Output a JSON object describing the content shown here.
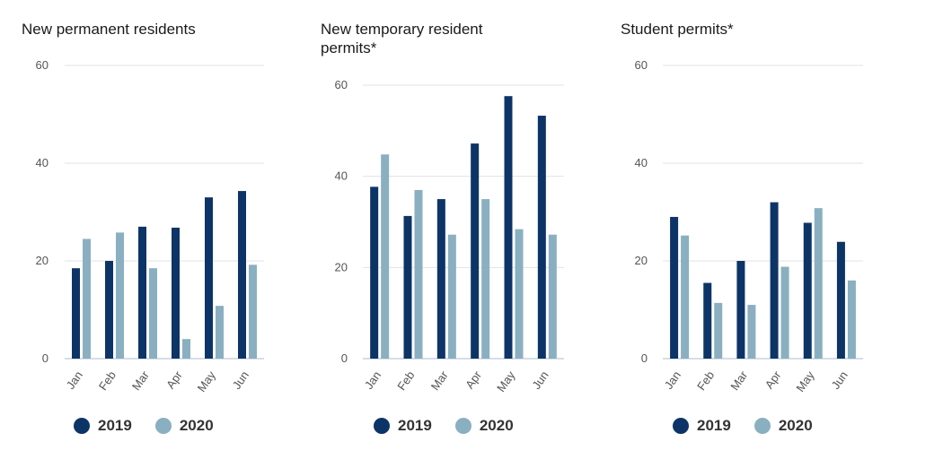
{
  "colors": {
    "s2019": "#0d3466",
    "s2020": "#8aafc1",
    "grid": "#e3e3e3",
    "axis": "#c8d3df"
  },
  "chart_data": [
    {
      "type": "bar",
      "title": "New permanent residents",
      "categories": [
        "Jan",
        "Feb",
        "Mar",
        "Apr",
        "May",
        "Jun"
      ],
      "ylim": [
        0,
        60
      ],
      "yticks": [
        "0",
        "20",
        "40",
        "60"
      ],
      "series": [
        {
          "name": "2019",
          "values": [
            18.5,
            20,
            27,
            26.8,
            33,
            34.3
          ]
        },
        {
          "name": "2020",
          "values": [
            24.5,
            25.8,
            18.5,
            4,
            10.8,
            19.2
          ]
        }
      ]
    },
    {
      "type": "bar",
      "title": "New temporary resident permits*",
      "categories": [
        "Jan",
        "Feb",
        "Mar",
        "Apr",
        "May",
        "Jun"
      ],
      "ylim": [
        0,
        60
      ],
      "yticks": [
        "0",
        "20",
        "40",
        "60"
      ],
      "series": [
        {
          "name": "2019",
          "values": [
            37.7,
            31.3,
            35,
            47.2,
            57.6,
            53.3
          ]
        },
        {
          "name": "2020",
          "values": [
            44.8,
            37,
            27.2,
            35,
            28.4,
            27.2
          ]
        }
      ]
    },
    {
      "type": "bar",
      "title": "Student permits*",
      "categories": [
        "Jan",
        "Feb",
        "Mar",
        "Apr",
        "May",
        "Jun"
      ],
      "ylim": [
        0,
        60
      ],
      "yticks": [
        "0",
        "20",
        "40",
        "60"
      ],
      "series": [
        {
          "name": "2019",
          "values": [
            29,
            15.5,
            20,
            32,
            27.8,
            23.9
          ]
        },
        {
          "name": "2020",
          "values": [
            25.2,
            11.4,
            11,
            18.8,
            30.8,
            16
          ]
        }
      ]
    }
  ]
}
